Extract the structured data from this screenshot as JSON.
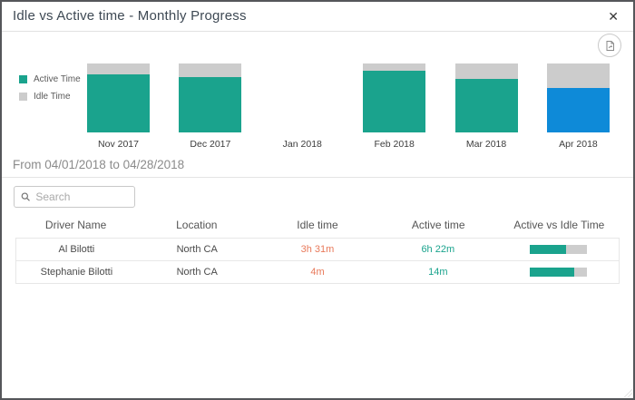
{
  "modal": {
    "title": "Idle vs Active time - Monthly Progress",
    "close_label": "✕"
  },
  "chart_data": {
    "type": "bar",
    "stacked": true,
    "categories": [
      "Nov 2017",
      "Dec 2017",
      "Jan 2018",
      "Feb 2018",
      "Mar 2018",
      "Apr 2018"
    ],
    "series": [
      {
        "name": "Active Time",
        "values": [
          84,
          80,
          0,
          90,
          78,
          65
        ],
        "color": "#1aa38d"
      },
      {
        "name": "Idle Time",
        "values": [
          16,
          20,
          0,
          10,
          22,
          35
        ],
        "color": "#cccccc"
      }
    ],
    "units": "percent of month total",
    "ylim": [
      0,
      100
    ],
    "legend_position": "left",
    "highlighted_category": "Apr 2018",
    "highlight_color": "#0e8ad8",
    "empty_categories": [
      "Jan 2018"
    ]
  },
  "filter": {
    "date_range_label": "From 04/01/2018 to 04/28/2018"
  },
  "search": {
    "placeholder": "Search"
  },
  "table": {
    "columns": [
      "Driver Name",
      "Location",
      "Idle time",
      "Active time",
      "Active vs Idle Time"
    ],
    "rows": [
      {
        "driver": "Al Bilotti",
        "location": "North CA",
        "idle": "3h 31m",
        "active": "6h 22m",
        "active_pct": 64
      },
      {
        "driver": "Stephanie Bilotti",
        "location": "North CA",
        "idle": "4m",
        "active": "14m",
        "active_pct": 78
      }
    ]
  },
  "colors": {
    "active": "#1aa38d",
    "idle": "#cccccc",
    "highlight_blue": "#0e8ad8",
    "idle_text": "#e8795a",
    "active_text": "#1aa38d"
  }
}
